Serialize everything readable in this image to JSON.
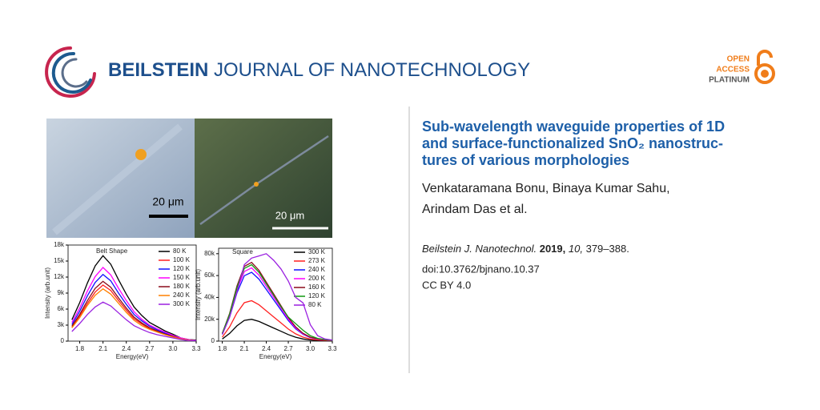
{
  "header": {
    "journal_bold": "BEILSTEIN",
    "journal_rest": "JOURNAL OF NANOTECHNOLOGY",
    "badge": [
      "OPEN",
      "ACCESS",
      "PLATINUM"
    ]
  },
  "photos": [
    {
      "scale_label": "20 μm"
    },
    {
      "scale_label": "20 μm"
    }
  ],
  "article": {
    "title_lines": [
      "Sub-wavelength waveguide properties of 1D",
      "and surface-functionalized SnO₂ nanostruc-",
      "tures of various morphologies"
    ],
    "author_lines": [
      "Venkataramana Bonu, Binaya Kumar Sahu,",
      "Arindam Das et al."
    ],
    "citation": {
      "journal": "Beilstein J. Nanotechnol.",
      "year": "2019,",
      "volume": "10,",
      "pages": "379–388."
    },
    "doi": "doi:10.3762/bjnano.10.37",
    "license": "CC BY 4.0"
  },
  "chart_data": [
    {
      "type": "line",
      "annotation": "Belt Shape",
      "x_label": "Energy(eV)",
      "y_label": "Intensity (arb.unit)",
      "x": [
        1.7,
        1.8,
        1.9,
        2.0,
        2.1,
        2.2,
        2.3,
        2.4,
        2.5,
        2.6,
        2.7,
        2.8,
        2.9,
        3.0,
        3.1,
        3.2,
        3.3
      ],
      "xlim": [
        1.65,
        3.3
      ],
      "xticks": [
        1.8,
        2.1,
        2.4,
        2.7,
        {
          "value": 3,
          "label": "3.0"
        },
        3.3
      ],
      "ylim": [
        0,
        18000
      ],
      "yticks": [
        0,
        {
          "value": 3000,
          "label": "3k"
        },
        {
          "value": 6000,
          "label": "6k"
        },
        {
          "value": 9000,
          "label": "9k"
        },
        {
          "value": 12000,
          "label": "12k"
        },
        {
          "value": 15000,
          "label": "15k"
        },
        {
          "value": 18000,
          "label": "18k"
        }
      ],
      "series": [
        {
          "name": "80 K",
          "color": "#000000",
          "values": [
            4000,
            7200,
            10900,
            14100,
            16000,
            14400,
            11500,
            8800,
            6400,
            4800,
            3500,
            2700,
            1900,
            1300,
            600,
            300,
            200
          ]
        },
        {
          "name": "100 K",
          "color": "#ff2020",
          "values": [
            2600,
            4700,
            7100,
            9200,
            10500,
            9500,
            7600,
            5800,
            4200,
            3200,
            2300,
            1800,
            1300,
            800,
            400,
            200,
            100
          ]
        },
        {
          "name": "120 K",
          "color": "#1010ff",
          "values": [
            3100,
            5600,
            8500,
            11000,
            12500,
            11300,
            9000,
            6900,
            5000,
            3800,
            2800,
            2100,
            1500,
            1000,
            500,
            300,
            100
          ]
        },
        {
          "name": "150 K",
          "color": "#ff00ff",
          "values": [
            3500,
            6200,
            9400,
            12100,
            13800,
            12400,
            9900,
            7600,
            5500,
            4100,
            3000,
            2300,
            1700,
            1100,
            600,
            300,
            100
          ]
        },
        {
          "name": "180 K",
          "color": "#8b0a1a",
          "values": [
            2800,
            5000,
            7600,
            9900,
            11200,
            10100,
            8100,
            6200,
            4500,
            3400,
            2500,
            1900,
            1300,
            900,
            400,
            200,
            100
          ]
        },
        {
          "name": "240 K",
          "color": "#ff8000",
          "values": [
            2500,
            4400,
            6700,
            8600,
            9800,
            8800,
            7100,
            5400,
            3900,
            2900,
            2200,
            1700,
            1200,
            800,
            400,
            200,
            100
          ]
        },
        {
          "name": "300 K",
          "color": "#9a20e0",
          "values": [
            1800,
            3300,
            5000,
            6400,
            7300,
            6600,
            5300,
            4000,
            2900,
            2200,
            1600,
            1200,
            900,
            600,
            300,
            100,
            100
          ]
        }
      ]
    },
    {
      "type": "line",
      "annotation": "Square",
      "x_label": "Energy(eV)",
      "y_label": "Intensity (arb.unit)",
      "x": [
        1.8,
        1.9,
        2.0,
        2.1,
        2.2,
        2.3,
        2.4,
        2.5,
        2.6,
        2.7,
        2.8,
        2.9,
        3.0,
        3.1,
        3.2,
        3.3
      ],
      "xlim": [
        1.75,
        3.3
      ],
      "xticks": [
        1.8,
        2.1,
        2.4,
        2.7,
        {
          "value": 3,
          "label": "3.0"
        },
        3.3
      ],
      "ylim": [
        0,
        85000
      ],
      "yticks": [
        0,
        {
          "value": 20000,
          "label": "20k"
        },
        {
          "value": 40000,
          "label": "40k"
        },
        {
          "value": 60000,
          "label": "60k"
        },
        {
          "value": 80000,
          "label": "80k"
        }
      ],
      "series": [
        {
          "name": "300 K",
          "color": "#000000",
          "values": [
            2000,
            7000,
            14000,
            19000,
            20000,
            18000,
            15000,
            12000,
            9000,
            6000,
            3600,
            2000,
            1000,
            600,
            400,
            200
          ]
        },
        {
          "name": "273 K",
          "color": "#ff2020",
          "values": [
            3700,
            13000,
            25900,
            35200,
            37000,
            33300,
            27800,
            22200,
            16700,
            11100,
            6700,
            3700,
            1900,
            1100,
            700,
            400
          ]
        },
        {
          "name": "240 K",
          "color": "#1010ff",
          "values": [
            6300,
            22000,
            44100,
            59900,
            63000,
            56700,
            47300,
            37800,
            28400,
            18900,
            11300,
            6300,
            3200,
            1900,
            1300,
            600
          ]
        },
        {
          "name": "200 K",
          "color": "#ff00ff",
          "values": [
            6700,
            23500,
            46900,
            63700,
            67000,
            60300,
            50300,
            40200,
            30200,
            20100,
            12100,
            6700,
            3400,
            2000,
            1300,
            700
          ]
        },
        {
          "name": "160 K",
          "color": "#8b0a1a",
          "values": [
            7200,
            25200,
            50400,
            68400,
            72000,
            64800,
            54000,
            43200,
            32400,
            21600,
            13000,
            7200,
            3600,
            2200,
            1400,
            700
          ]
        },
        {
          "name": "120 K",
          "color": "#119911",
          "values": [
            7000,
            24500,
            49000,
            66500,
            70000,
            63000,
            52500,
            42000,
            31500,
            22000,
            16000,
            10000,
            5000,
            2500,
            1500,
            700
          ]
        },
        {
          "name": "80 K",
          "color": "#9a20e0",
          "values": [
            6000,
            22000,
            45000,
            70000,
            76000,
            78000,
            80000,
            74000,
            66000,
            55000,
            40000,
            35000,
            15000,
            5000,
            2000,
            1000
          ]
        }
      ]
    }
  ]
}
